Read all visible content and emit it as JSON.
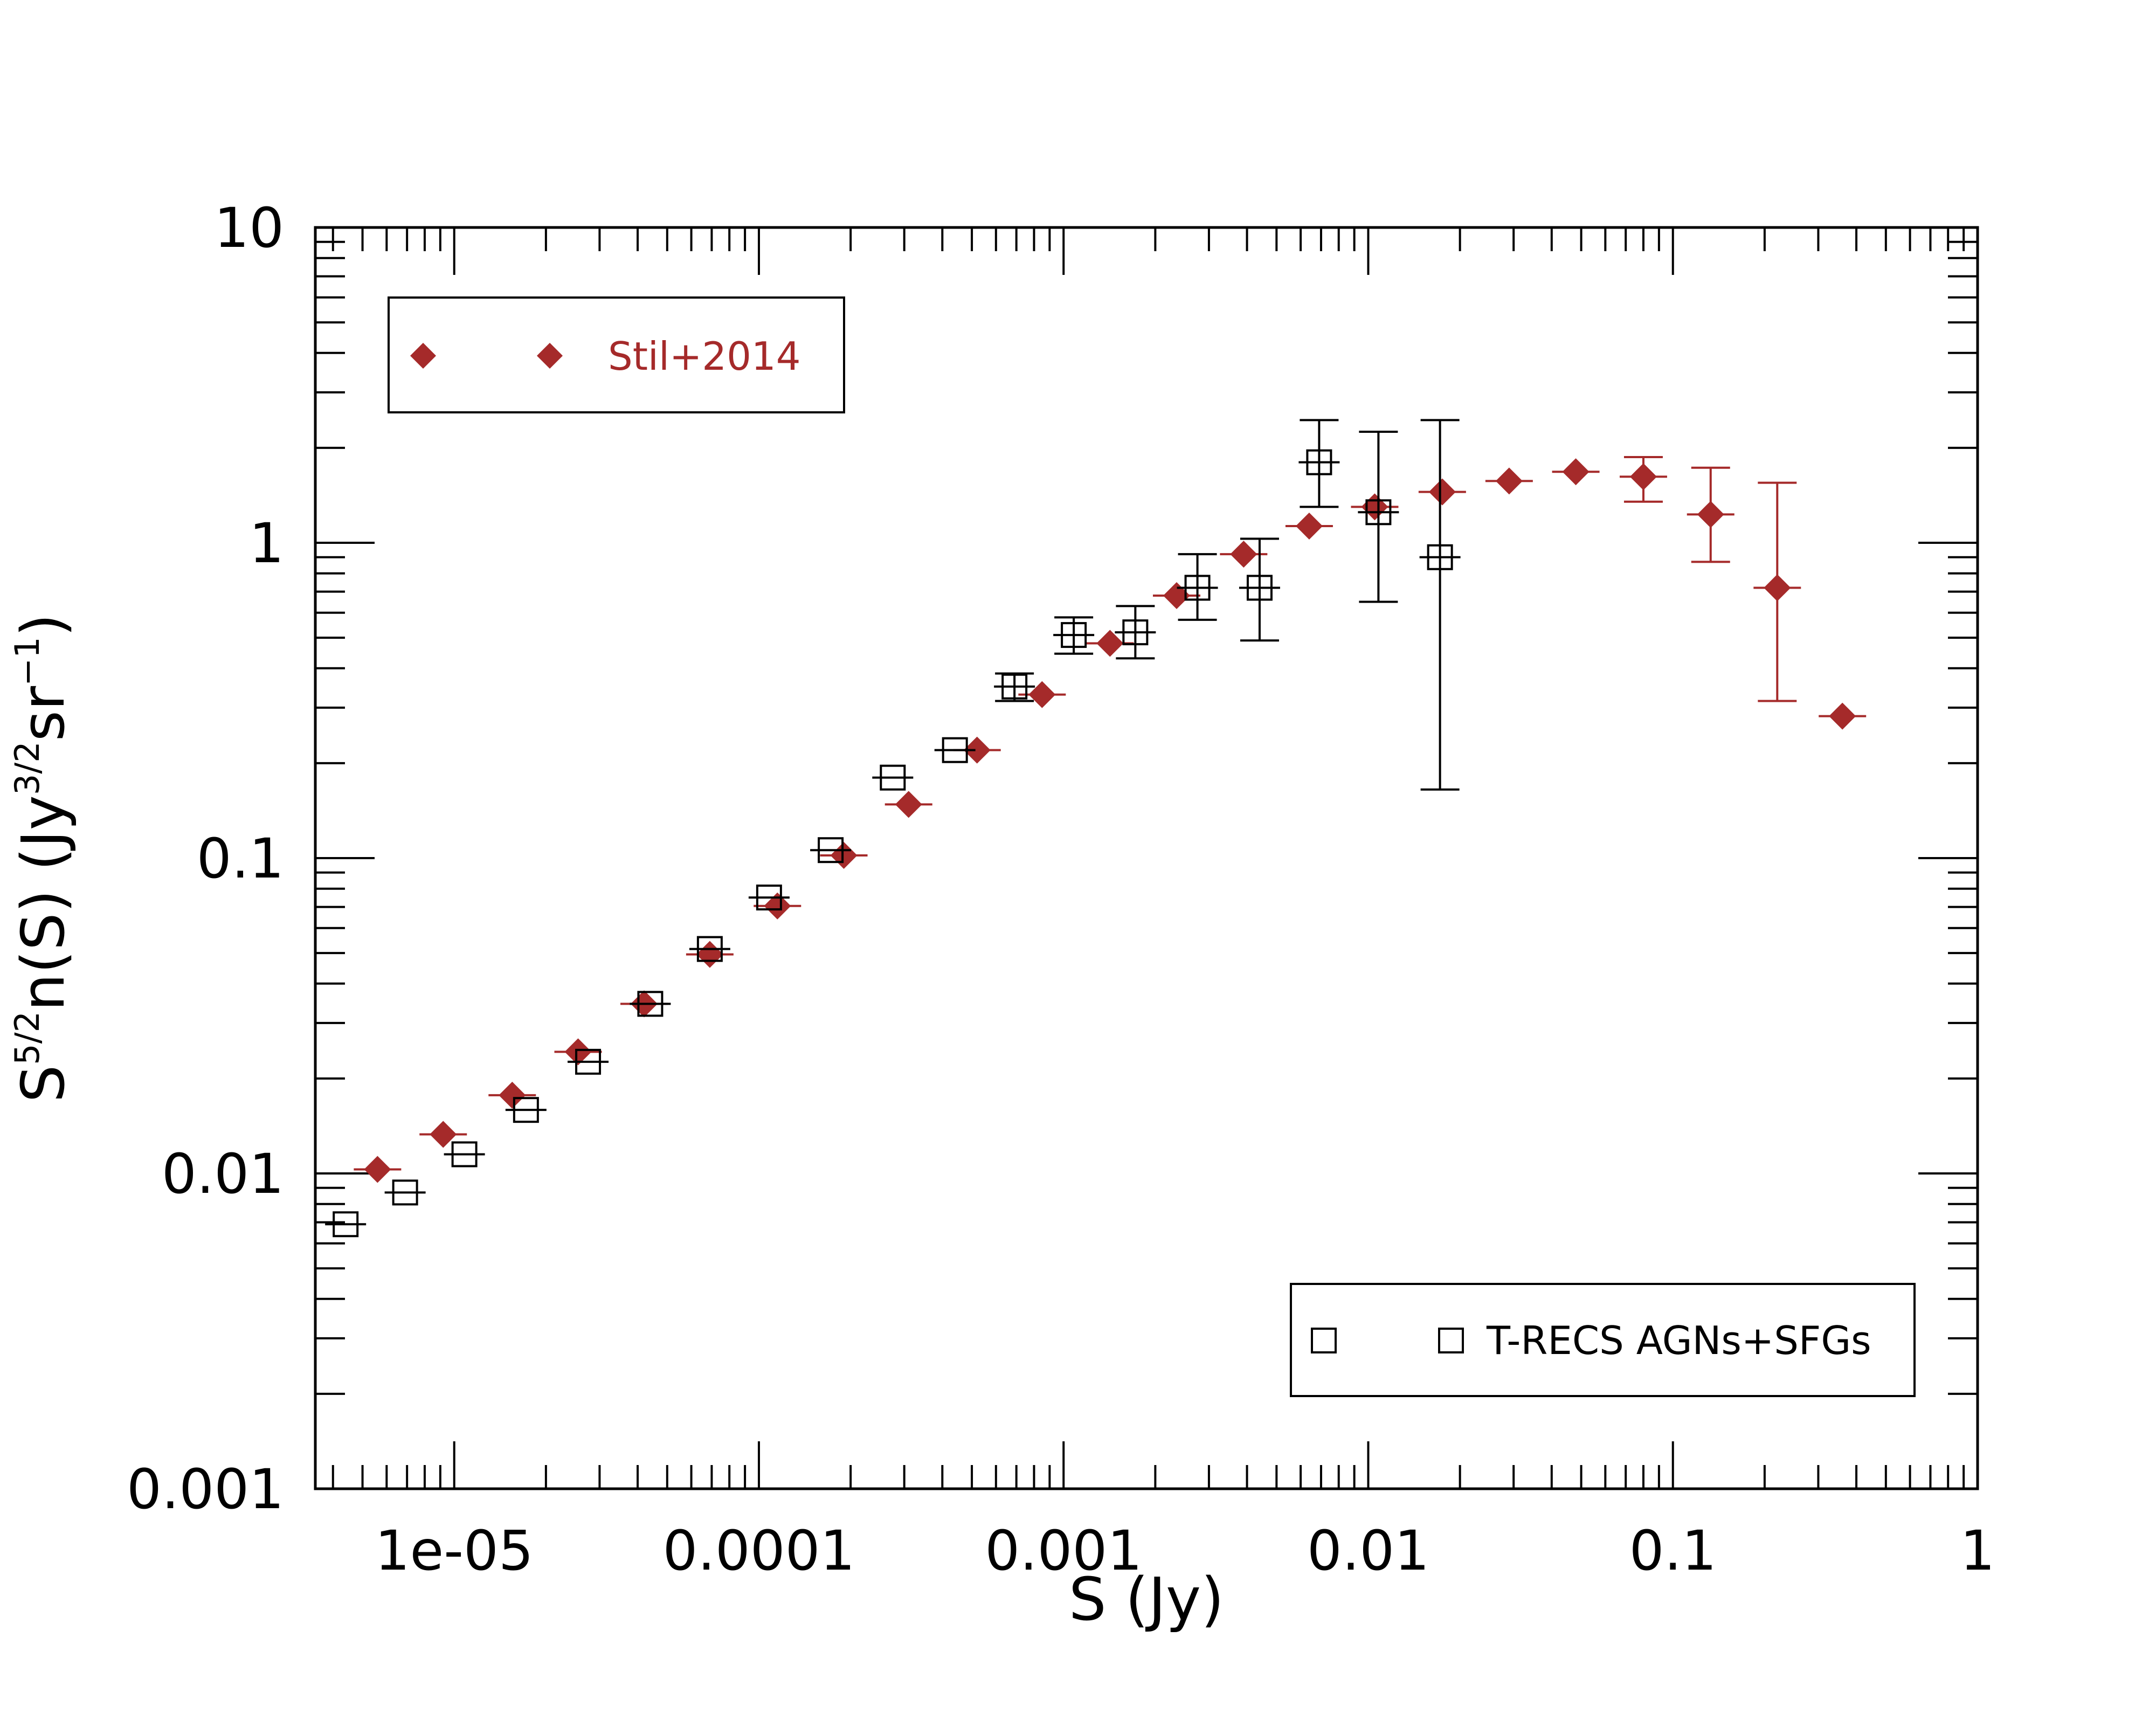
{
  "chart_data": {
    "type": "scatter",
    "title": "",
    "xlabel": "S  (Jy)",
    "ylabel": "S⁵ᐟ²n(S)  (Jy³ᐟ²sr⁻¹)",
    "ylabel_parts": {
      "base": "S",
      "sup1": "5/2",
      "mid": "n(S)  (Jy",
      "sup2": "3/2",
      "mid2": "sr",
      "sup3": "−1",
      "end": ")"
    },
    "xscale": "log",
    "yscale": "log",
    "xlim": [
      3.5e-06,
      1
    ],
    "ylim": [
      0.001,
      10
    ],
    "xticks": [
      {
        "value": 1e-05,
        "label": "1e-05"
      },
      {
        "value": 0.0001,
        "label": "0.0001"
      },
      {
        "value": 0.001,
        "label": "0.001"
      },
      {
        "value": 0.01,
        "label": "0.01"
      },
      {
        "value": 0.1,
        "label": "0.1"
      },
      {
        "value": 1,
        "label": "1"
      }
    ],
    "yticks": [
      {
        "value": 0.001,
        "label": "0.001"
      },
      {
        "value": 0.01,
        "label": "0.01"
      },
      {
        "value": 0.1,
        "label": "0.1"
      },
      {
        "value": 1,
        "label": "1"
      },
      {
        "value": 10,
        "label": "10"
      }
    ],
    "series": [
      {
        "name": "Stil+2014",
        "marker": "diamond",
        "color": "#a52a2a",
        "legend_position": "top-left",
        "points": [
          {
            "x": 5.6e-06,
            "y": 0.0103
          },
          {
            "x": 9.2e-06,
            "y": 0.0133
          },
          {
            "x": 1.55e-05,
            "y": 0.0177
          },
          {
            "x": 2.55e-05,
            "y": 0.0243
          },
          {
            "x": 4.2e-05,
            "y": 0.0345
          },
          {
            "x": 6.9e-05,
            "y": 0.0495
          },
          {
            "x": 0.000115,
            "y": 0.0705
          },
          {
            "x": 0.00019,
            "y": 0.102
          },
          {
            "x": 0.00031,
            "y": 0.148
          },
          {
            "x": 0.00052,
            "y": 0.22
          },
          {
            "x": 0.00085,
            "y": 0.33
          },
          {
            "x": 0.00142,
            "y": 0.48
          },
          {
            "x": 0.00235,
            "y": 0.68
          },
          {
            "x": 0.0039,
            "y": 0.92
          },
          {
            "x": 0.0064,
            "y": 1.13
          },
          {
            "x": 0.0105,
            "y": 1.3
          },
          {
            "x": 0.0175,
            "y": 1.45
          },
          {
            "x": 0.029,
            "y": 1.57
          },
          {
            "x": 0.048,
            "y": 1.68
          },
          {
            "x": 0.08,
            "y": 1.62,
            "yerr": [
              1.35,
              1.87
            ]
          },
          {
            "x": 0.133,
            "y": 1.23,
            "yerr": [
              0.87,
              1.73
            ]
          },
          {
            "x": 0.22,
            "y": 0.72,
            "yerr": [
              0.315,
              1.55
            ]
          },
          {
            "x": 0.36,
            "y": 0.282
          }
        ]
      },
      {
        "name": "T-RECS AGNs+SFGs",
        "marker": "open-square",
        "color": "#000000",
        "legend_position": "bottom-right",
        "points": [
          {
            "x": 4.4e-06,
            "y": 0.0069
          },
          {
            "x": 6.9e-06,
            "y": 0.0087
          },
          {
            "x": 1.08e-05,
            "y": 0.0115
          },
          {
            "x": 1.72e-05,
            "y": 0.0159
          },
          {
            "x": 2.75e-05,
            "y": 0.0226
          },
          {
            "x": 4.4e-05,
            "y": 0.0345
          },
          {
            "x": 6.9e-05,
            "y": 0.0515
          },
          {
            "x": 0.000108,
            "y": 0.075
          },
          {
            "x": 0.000172,
            "y": 0.106
          },
          {
            "x": 0.000275,
            "y": 0.18
          },
          {
            "x": 0.00044,
            "y": 0.22
          },
          {
            "x": 0.00069,
            "y": 0.35,
            "yerr": [
              0.315,
              0.385
            ]
          },
          {
            "x": 0.00108,
            "y": 0.51,
            "yerr": [
              0.445,
              0.58
            ]
          },
          {
            "x": 0.00172,
            "y": 0.52,
            "yerr": [
              0.43,
              0.63
            ]
          },
          {
            "x": 0.00275,
            "y": 0.72,
            "yerr": [
              0.57,
              0.92
            ]
          },
          {
            "x": 0.0044,
            "y": 0.72,
            "yerr": [
              0.49,
              1.03
            ]
          },
          {
            "x": 0.0069,
            "y": 1.8,
            "yerr": [
              1.3,
              2.45
            ]
          },
          {
            "x": 0.0108,
            "y": 1.25,
            "yerr": [
              0.65,
              2.25
            ]
          },
          {
            "x": 0.0172,
            "y": 0.9,
            "yerr": [
              0.165,
              2.45
            ]
          }
        ]
      }
    ],
    "legend": [
      {
        "label": "Stil+2014",
        "series": 0,
        "position": "top-left"
      },
      {
        "label": "T-RECS AGNs+SFGs",
        "series": 1,
        "position": "bottom-right"
      }
    ],
    "grid": false
  }
}
